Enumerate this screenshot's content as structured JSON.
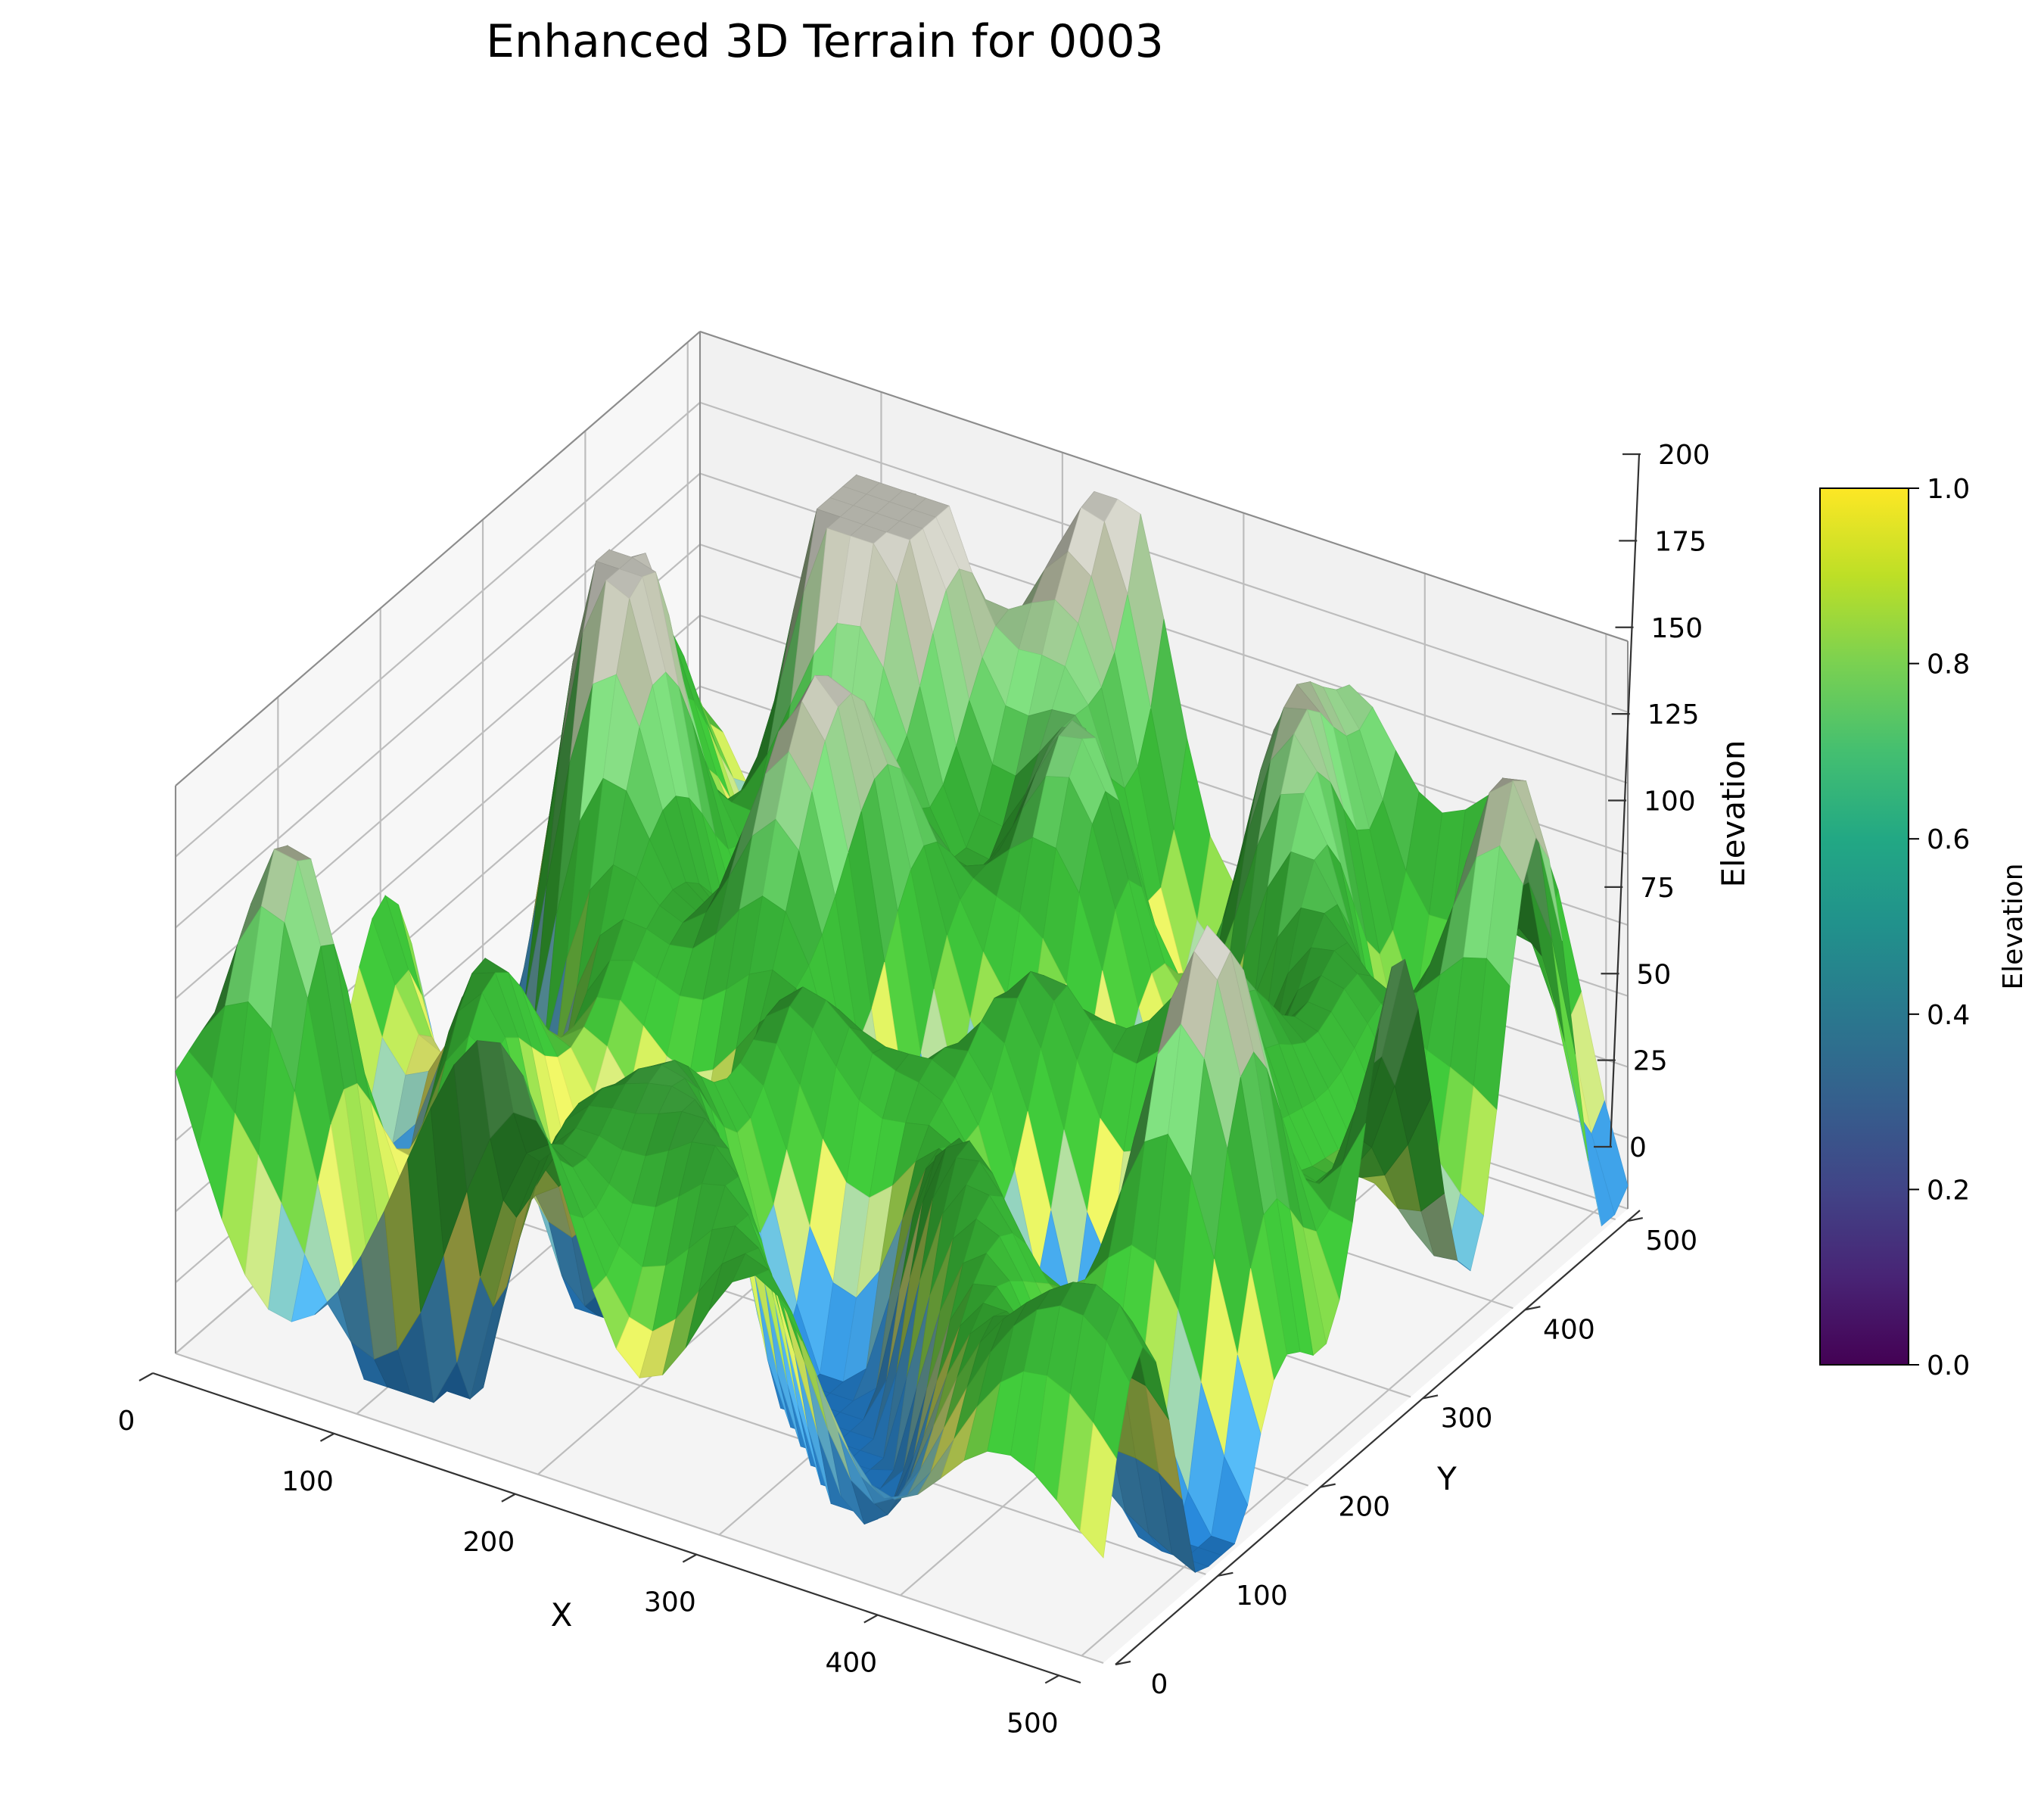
{
  "chart_data": {
    "type": "surface",
    "title": "Enhanced 3D Terrain for 0003",
    "xlabel": "X",
    "ylabel": "Y",
    "zlabel": "Elevation",
    "xlim": [
      0,
      512
    ],
    "ylim": [
      0,
      512
    ],
    "zlim": [
      0,
      200
    ],
    "x_ticks": [
      "0",
      "100",
      "200",
      "300",
      "400",
      "500"
    ],
    "y_ticks": [
      "0",
      "100",
      "200",
      "300",
      "400",
      "500"
    ],
    "z_ticks": [
      "0",
      "25",
      "50",
      "75",
      "100",
      "125",
      "150",
      "175",
      "200"
    ],
    "grid": true,
    "colorbar": {
      "label": "Elevation",
      "colormap": "viridis",
      "range": [
        0,
        1
      ],
      "ticks": [
        "0.0",
        "0.2",
        "0.4",
        "0.6",
        "0.8",
        "1.0"
      ]
    },
    "surface_colormap": "terrain"
  }
}
